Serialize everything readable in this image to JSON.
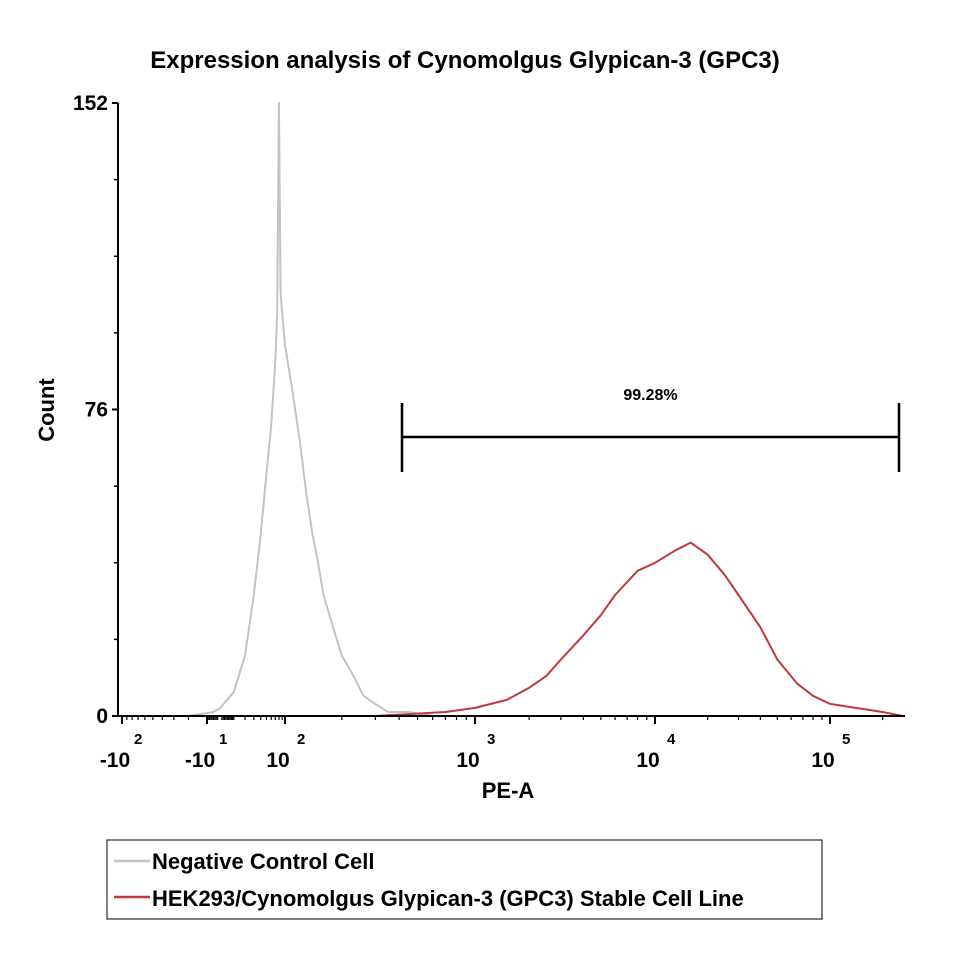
{
  "chart_data": {
    "type": "histogram",
    "title": "Expression analysis of Cynomolgus Glypican-3 (GPC3)",
    "xlabel": "PE-A",
    "ylabel": "Count",
    "x_scale": "biexponential",
    "ylim": [
      0,
      152
    ],
    "yticks": [
      "0",
      "76",
      "152"
    ],
    "xticks": [
      {
        "base": "-10",
        "exp": "2",
        "value": -100
      },
      {
        "base": "-10",
        "exp": "1",
        "value": -10
      },
      {
        "base": "10",
        "exp": "2",
        "value": 100
      },
      {
        "base": "10",
        "exp": "3",
        "value": 1000
      },
      {
        "base": "10",
        "exp": "4",
        "value": 10000
      },
      {
        "base": "10",
        "exp": "5",
        "value": 100000
      }
    ],
    "gate": {
      "label": "99.28%",
      "x_start": 500,
      "x_end": 250000
    },
    "legend_position": "bottom",
    "series": [
      {
        "name": "Negative Control Cell",
        "color": "#c3c3c3",
        "points": [
          [
            -100,
            0
          ],
          [
            -20,
            0
          ],
          [
            -5,
            1
          ],
          [
            0,
            2
          ],
          [
            10,
            6
          ],
          [
            20,
            15
          ],
          [
            30,
            30
          ],
          [
            40,
            45
          ],
          [
            50,
            60
          ],
          [
            60,
            72
          ],
          [
            70,
            88
          ],
          [
            75,
            100
          ],
          [
            80,
            152
          ],
          [
            85,
            105
          ],
          [
            90,
            100
          ],
          [
            100,
            92
          ],
          [
            110,
            80
          ],
          [
            120,
            68
          ],
          [
            130,
            55
          ],
          [
            140,
            45
          ],
          [
            150,
            38
          ],
          [
            160,
            30
          ],
          [
            180,
            22
          ],
          [
            200,
            15
          ],
          [
            230,
            10
          ],
          [
            260,
            5
          ],
          [
            300,
            3
          ],
          [
            350,
            1
          ],
          [
            450,
            1
          ],
          [
            600,
            0
          ]
        ]
      },
      {
        "name": "HEK293/Cynomolgus Glypican-3 (GPC3) Stable Cell Line",
        "color": "#c0393b",
        "points": [
          [
            60,
            0
          ],
          [
            300,
            0
          ],
          [
            700,
            1
          ],
          [
            1000,
            2
          ],
          [
            1500,
            4
          ],
          [
            2000,
            7
          ],
          [
            2500,
            10
          ],
          [
            3000,
            14
          ],
          [
            4000,
            20
          ],
          [
            5000,
            25
          ],
          [
            6000,
            30
          ],
          [
            8000,
            36
          ],
          [
            10000,
            38
          ],
          [
            13000,
            41
          ],
          [
            16000,
            43
          ],
          [
            20000,
            40
          ],
          [
            25000,
            35
          ],
          [
            30000,
            30
          ],
          [
            40000,
            22
          ],
          [
            50000,
            14
          ],
          [
            65000,
            8
          ],
          [
            80000,
            5
          ],
          [
            100000,
            3
          ],
          [
            140000,
            2
          ],
          [
            200000,
            1
          ],
          [
            260000,
            0
          ]
        ]
      }
    ]
  }
}
